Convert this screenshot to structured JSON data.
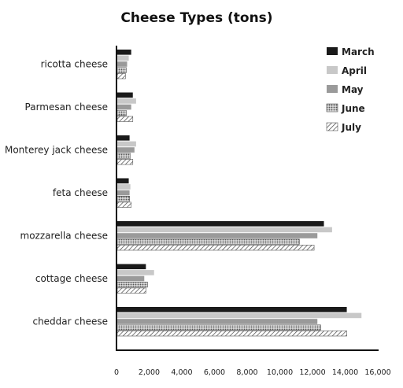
{
  "chart_data": {
    "type": "bar",
    "orientation": "horizontal",
    "title": "Cheese Types (tons)",
    "xlabel": "",
    "ylabel": "",
    "xlim": [
      0,
      16000
    ],
    "xticks": [
      "0",
      "2,000",
      "4,000",
      "6,000",
      "8,000",
      "10,000",
      "12,000",
      "14,000",
      "16,000"
    ],
    "grid": false,
    "legend_position": "top-right",
    "categories": [
      "ricotta cheese",
      "Parmesan cheese",
      "Monterey jack cheese",
      "feta cheese",
      "mozzarella cheese",
      "cottage cheese",
      "cheddar cheese"
    ],
    "series": [
      {
        "name": "March",
        "pattern": "solid",
        "color": "#1a1a1a",
        "values": [
          900,
          1000,
          800,
          750,
          12700,
          1800,
          14100
        ]
      },
      {
        "name": "April",
        "pattern": "solid",
        "color": "#c8c8c8",
        "values": [
          750,
          1200,
          1200,
          850,
          13200,
          2300,
          15000
        ]
      },
      {
        "name": "May",
        "pattern": "solid",
        "color": "#9a9a9a",
        "values": [
          650,
          900,
          1100,
          800,
          12300,
          1700,
          12300
        ]
      },
      {
        "name": "June",
        "pattern": "dots",
        "color": "#ffffff",
        "values": [
          600,
          600,
          850,
          800,
          11200,
          1900,
          12500
        ]
      },
      {
        "name": "July",
        "pattern": "hatch",
        "color": "#ffffff",
        "values": [
          550,
          1000,
          1000,
          900,
          12100,
          1800,
          14100
        ]
      }
    ]
  }
}
